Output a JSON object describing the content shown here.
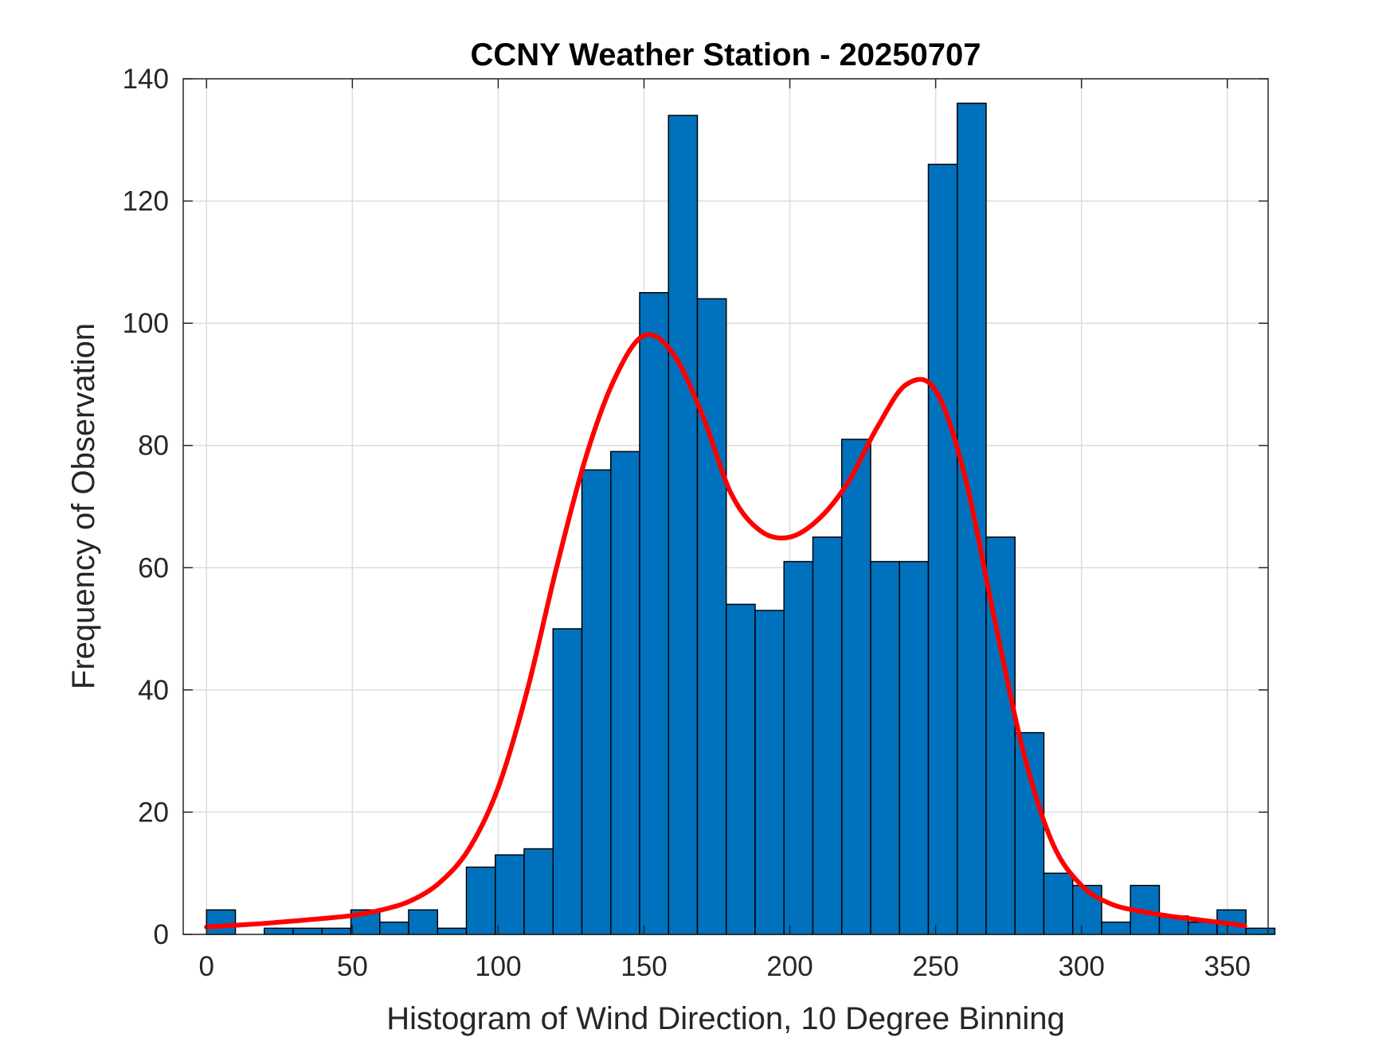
{
  "chart_data": {
    "type": "bar",
    "title": "CCNY Weather Station - 20250707",
    "xlabel": "Histogram of Wind Direction, 10 Degree Binning",
    "ylabel": "Frequency of Observation",
    "xlim": [
      -8,
      364
    ],
    "ylim": [
      0,
      140
    ],
    "xticks": [
      0,
      50,
      100,
      150,
      200,
      250,
      300,
      350
    ],
    "yticks": [
      0,
      20,
      40,
      60,
      80,
      100,
      120,
      140
    ],
    "grid": true,
    "bin_width": 9.9,
    "bin_edges": [
      0,
      9.9,
      19.8,
      29.7,
      39.6,
      49.5,
      59.4,
      69.3,
      79.2,
      89.1,
      99.0,
      108.9,
      118.8,
      128.7,
      138.6,
      148.5,
      158.4,
      168.3,
      178.2,
      188.1,
      198.0,
      207.9,
      217.8,
      227.7,
      237.6,
      247.5,
      257.4,
      267.3,
      277.2,
      287.1,
      297.0,
      306.9,
      316.8,
      326.7,
      336.6,
      346.5,
      356.4
    ],
    "counts": [
      4,
      0,
      1,
      1,
      1,
      4,
      2,
      4,
      1,
      11,
      13,
      14,
      50,
      76,
      79,
      105,
      134,
      104,
      54,
      53,
      61,
      65,
      81,
      61,
      61,
      126,
      136,
      65,
      33,
      10,
      8,
      2,
      8,
      3,
      2,
      4,
      1
    ],
    "bar_color": "#0072BD",
    "bar_edge_color": "#000000",
    "fit_curve": {
      "color": "#FF0000",
      "x": [
        0,
        10,
        20,
        30,
        40,
        50,
        60,
        70,
        80,
        90,
        100,
        110,
        120,
        130,
        140,
        150,
        160,
        170,
        180,
        190,
        200,
        210,
        220,
        230,
        240,
        250,
        260,
        270,
        280,
        290,
        300,
        310,
        320,
        330,
        340,
        350,
        356
      ],
      "y": [
        1.2,
        1.5,
        1.8,
        2.2,
        2.6,
        3.1,
        4.0,
        5.5,
        8.5,
        14,
        24,
        40,
        60,
        78,
        91,
        98,
        95,
        85,
        72,
        66,
        65,
        68,
        74,
        83,
        90,
        89,
        75,
        52,
        30,
        15,
        8,
        5,
        3.8,
        3.0,
        2.4,
        1.8,
        1.4
      ]
    }
  }
}
